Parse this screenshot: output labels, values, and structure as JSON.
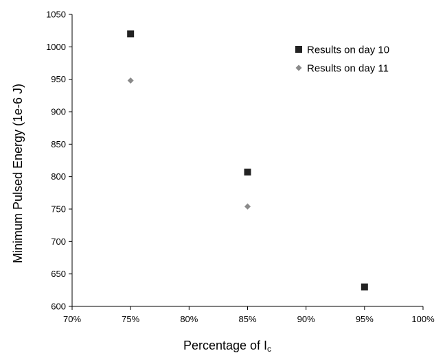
{
  "chart_data": {
    "type": "scatter",
    "xlabel": "Percentage of I",
    "xlabel_subscript": "c",
    "ylabel": "Minimum Pulsed Energy (1e-6 J)",
    "xlim": [
      70,
      100
    ],
    "ylim": [
      600,
      1050
    ],
    "x_ticks": [
      70,
      75,
      80,
      85,
      90,
      95,
      100
    ],
    "x_tick_labels": [
      "70%",
      "75%",
      "80%",
      "85%",
      "90%",
      "95%",
      "100%"
    ],
    "y_ticks": [
      600,
      650,
      700,
      750,
      800,
      850,
      900,
      950,
      1000,
      1050
    ],
    "y_tick_labels": [
      "600",
      "650",
      "700",
      "750",
      "800",
      "850",
      "900",
      "950",
      "1000",
      "1050"
    ],
    "grid": false,
    "legend_position": "top-right",
    "series": [
      {
        "name": "Results on day 10",
        "marker": "square",
        "color": "#222222",
        "points": [
          {
            "x": 75,
            "y": 1020
          },
          {
            "x": 85,
            "y": 807
          },
          {
            "x": 95,
            "y": 630
          }
        ]
      },
      {
        "name": "Results on day 11",
        "marker": "diamond",
        "color": "#8a8a8a",
        "points": [
          {
            "x": 75,
            "y": 948
          },
          {
            "x": 85,
            "y": 754
          }
        ]
      }
    ]
  }
}
